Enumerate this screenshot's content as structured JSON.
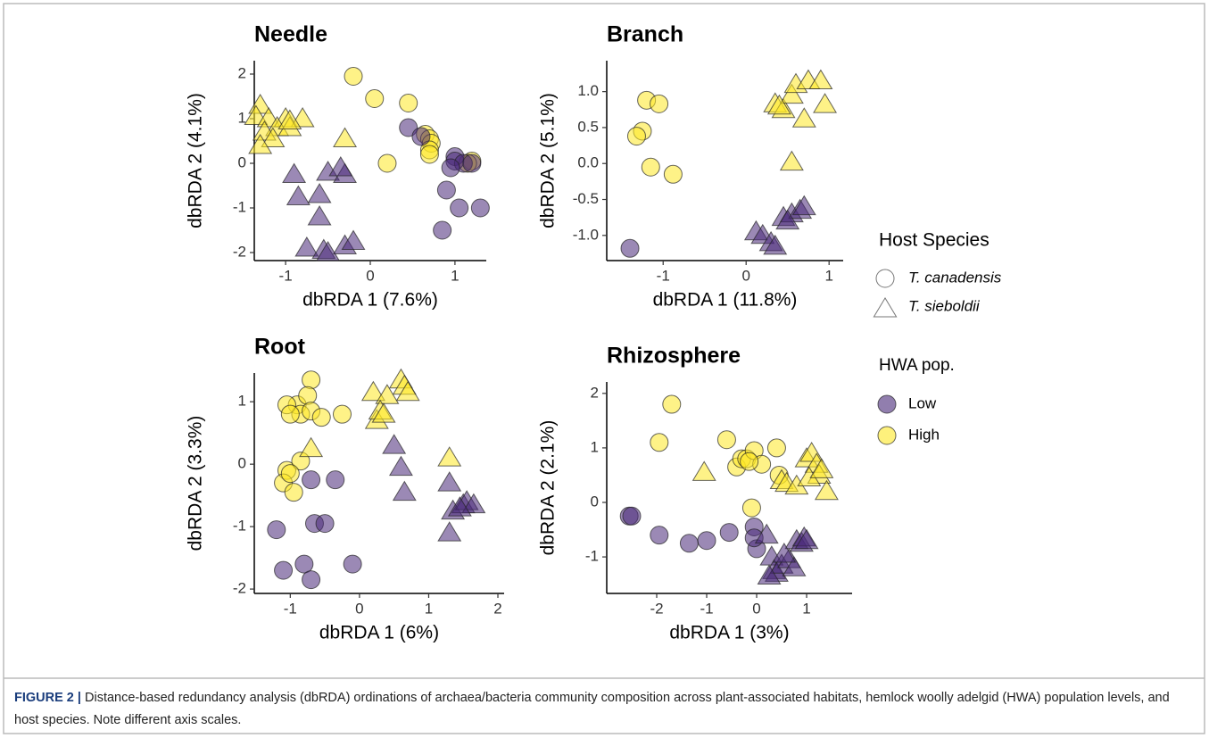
{
  "chart_data": [
    {
      "type": "scatter",
      "title": "Needle",
      "xlabel": "dbRDA 1 (7.6%)",
      "ylabel": "dbRDA 2 (4.1%)",
      "xlim": [
        -1.37,
        1.37
      ],
      "ylim": [
        -2.18,
        2.3
      ],
      "xticks": [
        -1,
        0,
        1
      ],
      "yticks": [
        -2,
        -1,
        0,
        1,
        2
      ],
      "series": [
        {
          "marker": "triangle",
          "color": "#fde725",
          "x": [
            -1.3,
            -1.35,
            -1.2,
            -1.0,
            -0.8,
            -1.1,
            -0.95,
            -1.25,
            -1.15,
            -1.3,
            -0.3,
            -0.95
          ],
          "y": [
            1.3,
            1.05,
            1.0,
            1.0,
            1.0,
            0.8,
            0.8,
            0.7,
            0.55,
            0.4,
            0.55,
            0.95
          ]
        },
        {
          "marker": "circle",
          "color": "#fde725",
          "x": [
            -0.2,
            0.05,
            0.45,
            0.2,
            0.65,
            0.7,
            0.72,
            0.7,
            0.7,
            1.2,
            1.15
          ],
          "y": [
            1.95,
            1.45,
            1.35,
            0.0,
            0.65,
            0.55,
            0.45,
            0.3,
            0.2,
            0.05,
            0.0
          ]
        },
        {
          "marker": "circle",
          "color": "#482878",
          "x": [
            0.45,
            0.6,
            1.0,
            1.0,
            1.1,
            0.95,
            0.9,
            1.05,
            1.3,
            0.85,
            1.2
          ],
          "y": [
            0.8,
            0.6,
            0.15,
            0.05,
            0.0,
            -0.1,
            -0.6,
            -1.0,
            -1.0,
            -1.5,
            0.0
          ]
        },
        {
          "marker": "triangle",
          "color": "#482878",
          "x": [
            -0.9,
            -0.85,
            -0.5,
            -0.3,
            -0.35,
            -0.6,
            -0.6,
            -0.75,
            -0.55,
            -0.5,
            -0.3,
            -0.2
          ],
          "y": [
            -0.25,
            -0.75,
            -0.2,
            -0.25,
            -0.1,
            -0.7,
            -1.2,
            -1.9,
            -1.95,
            -2.0,
            -1.85,
            -1.75
          ]
        }
      ]
    },
    {
      "type": "scatter",
      "title": "Branch",
      "xlabel": "dbRDA 1 (11.8%)",
      "ylabel": "dbRDA 2 (5.1%)",
      "xlim": [
        -1.68,
        1.17
      ],
      "ylim": [
        -1.35,
        1.43
      ],
      "xticks": [
        -1,
        0,
        1
      ],
      "yticks": [
        {
          "value": -1,
          "label": "-1.0"
        },
        {
          "value": -0.5,
          "label": "-0.5"
        },
        {
          "value": 0,
          "label": "0.0"
        },
        {
          "value": 0.5,
          "label": "0.5"
        },
        {
          "value": 1,
          "label": "1.0"
        }
      ],
      "series": [
        {
          "marker": "circle",
          "color": "#fde725",
          "x": [
            -1.2,
            -1.05,
            -1.25,
            -1.32,
            -1.15,
            -0.88
          ],
          "y": [
            0.88,
            0.83,
            0.45,
            0.38,
            -0.05,
            -0.15
          ]
        },
        {
          "marker": "circle",
          "color": "#482878",
          "x": [
            -1.4
          ],
          "y": [
            -1.18
          ]
        },
        {
          "marker": "triangle",
          "color": "#fde725",
          "x": [
            0.35,
            0.45,
            0.55,
            0.6,
            0.75,
            0.9,
            0.95,
            0.7,
            0.55,
            0.4
          ],
          "y": [
            0.83,
            0.75,
            0.95,
            1.1,
            1.15,
            1.15,
            0.82,
            0.62,
            0.02,
            0.8
          ]
        },
        {
          "marker": "triangle",
          "color": "#482878",
          "x": [
            0.12,
            0.2,
            0.3,
            0.35,
            0.45,
            0.55,
            0.65,
            0.7,
            0.5
          ],
          "y": [
            -0.95,
            -1.0,
            -1.1,
            -1.15,
            -0.75,
            -0.7,
            -0.65,
            -0.6,
            -0.8
          ]
        }
      ]
    },
    {
      "type": "scatter",
      "title": "Root",
      "xlabel": "dbRDA 1 (6%)",
      "ylabel": "dbRDA 2 (3.3%)",
      "xlim": [
        -1.52,
        2.09
      ],
      "ylim": [
        -2.07,
        1.46
      ],
      "xticks": [
        -1,
        0,
        1,
        2
      ],
      "yticks": [
        -2,
        -1,
        0,
        1
      ],
      "series": [
        {
          "marker": "circle",
          "color": "#fde725",
          "x": [
            -0.9,
            -0.7,
            -0.75,
            -0.85,
            -0.7,
            -0.55,
            -0.25,
            -1.05,
            -1.0,
            -1.05,
            -1.1,
            -0.95,
            -0.85,
            -1.0
          ],
          "y": [
            0.95,
            1.35,
            1.1,
            0.8,
            0.85,
            0.75,
            0.8,
            0.95,
            0.8,
            -0.1,
            -0.3,
            -0.45,
            0.05,
            -0.15
          ]
        },
        {
          "marker": "triangle",
          "color": "#fde725",
          "x": [
            -0.7,
            0.2,
            0.4,
            0.6,
            0.65,
            0.7,
            0.25,
            0.3,
            0.35,
            1.3
          ],
          "y": [
            0.25,
            1.15,
            1.1,
            1.35,
            1.25,
            1.15,
            0.7,
            0.85,
            0.8,
            0.1
          ]
        },
        {
          "marker": "circle",
          "color": "#482878",
          "x": [
            -0.7,
            -0.35,
            -1.2,
            -1.1,
            -0.8,
            -0.7,
            -0.65,
            -0.5,
            -0.1
          ],
          "y": [
            -0.25,
            -0.25,
            -1.05,
            -1.7,
            -1.6,
            -1.85,
            -0.95,
            -0.95,
            -1.6
          ]
        },
        {
          "marker": "triangle",
          "color": "#482878",
          "x": [
            0.5,
            0.6,
            0.65,
            1.3,
            1.35,
            1.5,
            1.55,
            1.65,
            1.3,
            1.45
          ],
          "y": [
            0.3,
            -0.05,
            -0.45,
            -0.3,
            -0.75,
            -0.65,
            -0.6,
            -0.65,
            -1.1,
            -0.7
          ]
        }
      ]
    },
    {
      "type": "scatter",
      "title": "Rhizosphere",
      "xlabel": "dbRDA 1 (3%)",
      "ylabel": "dbRDA 2 (2.1%)",
      "xlim": [
        -3.0,
        1.91
      ],
      "ylim": [
        -1.67,
        2.21
      ],
      "xticks": [
        -2,
        -1,
        0,
        1
      ],
      "yticks": [
        -1,
        0,
        1,
        2
      ],
      "series": [
        {
          "marker": "circle",
          "color": "#fde725",
          "x": [
            -1.7,
            -1.95,
            -0.6,
            -0.4,
            -0.3,
            -0.2,
            -0.05,
            0.1,
            0.4,
            0.45,
            -0.1,
            -0.15
          ],
          "y": [
            1.8,
            1.1,
            1.15,
            0.65,
            0.8,
            0.8,
            0.95,
            0.7,
            1.0,
            0.5,
            -0.1,
            0.75
          ]
        },
        {
          "marker": "triangle",
          "color": "#fde725",
          "x": [
            -1.05,
            0.5,
            0.6,
            0.8,
            1.0,
            1.1,
            1.2,
            1.25,
            1.4,
            1.05,
            1.3
          ],
          "y": [
            0.55,
            0.4,
            0.35,
            0.3,
            0.8,
            0.9,
            0.7,
            0.5,
            0.2,
            0.45,
            0.6
          ]
        },
        {
          "marker": "circle",
          "color": "#482878",
          "x": [
            -2.55,
            -2.5,
            -1.95,
            -1.35,
            -1.0,
            -0.55,
            -0.05,
            0.0,
            -0.05
          ],
          "y": [
            -0.25,
            -0.25,
            -0.6,
            -0.75,
            -0.7,
            -0.55,
            -0.45,
            -0.85,
            -0.65
          ]
        },
        {
          "marker": "triangle",
          "color": "#482878",
          "x": [
            0.2,
            0.3,
            0.35,
            0.4,
            0.5,
            0.65,
            0.75,
            0.8,
            0.9,
            0.95,
            1.0,
            0.55,
            0.25
          ],
          "y": [
            -0.6,
            -1.0,
            -1.25,
            -1.3,
            -1.15,
            -1.05,
            -1.2,
            -0.7,
            -0.75,
            -0.65,
            -0.7,
            -0.95,
            -1.35
          ]
        }
      ]
    }
  ],
  "legend": {
    "host_title": "Host Species",
    "host": [
      {
        "label": "T. canadensis",
        "marker": "circle"
      },
      {
        "label": "T. sieboldii",
        "marker": "triangle"
      }
    ],
    "hwa_title": "HWA pop.",
    "hwa": [
      {
        "label": "Low",
        "color": "#482878"
      },
      {
        "label": "High",
        "color": "#fde725"
      }
    ]
  },
  "caption": {
    "label": "FIGURE 2 |",
    "text": "Distance-based redundancy analysis (dbRDA) ordinations of archaea/bacteria community composition across plant-associated habitats, hemlock woolly adelgid (HWA) population levels, and host species. Note different axis scales."
  }
}
